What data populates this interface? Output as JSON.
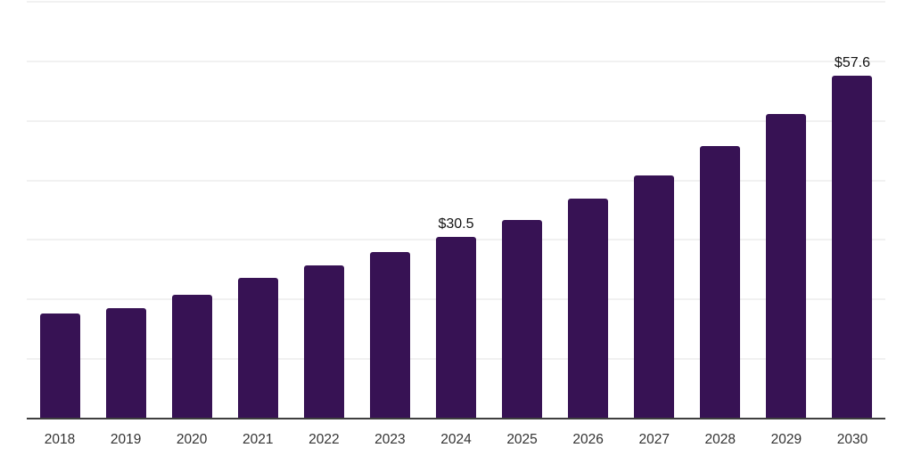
{
  "chart_data": {
    "type": "bar",
    "title": "",
    "xlabel": "",
    "ylabel": "",
    "categories": [
      "2018",
      "2019",
      "2020",
      "2021",
      "2022",
      "2023",
      "2024",
      "2025",
      "2026",
      "2027",
      "2028",
      "2029",
      "2030"
    ],
    "values": [
      17.6,
      18.6,
      20.8,
      23.6,
      25.8,
      27.9,
      30.5,
      33.4,
      36.9,
      40.9,
      45.7,
      51.2,
      57.6
    ],
    "value_labels": {
      "2024": "$30.5",
      "2030": "$57.6"
    },
    "ylim": [
      0,
      70
    ],
    "grid_step": 10,
    "grid": "horizontal-only",
    "y_axis_tick_labels_visible": false,
    "legend": "none",
    "colors": {
      "bar": "#371254",
      "gridline": "#f1f1f1",
      "axis_line": "#3f3f3f",
      "tick_label": "#333333",
      "data_label": "#121212",
      "background": "#ffffff"
    }
  }
}
